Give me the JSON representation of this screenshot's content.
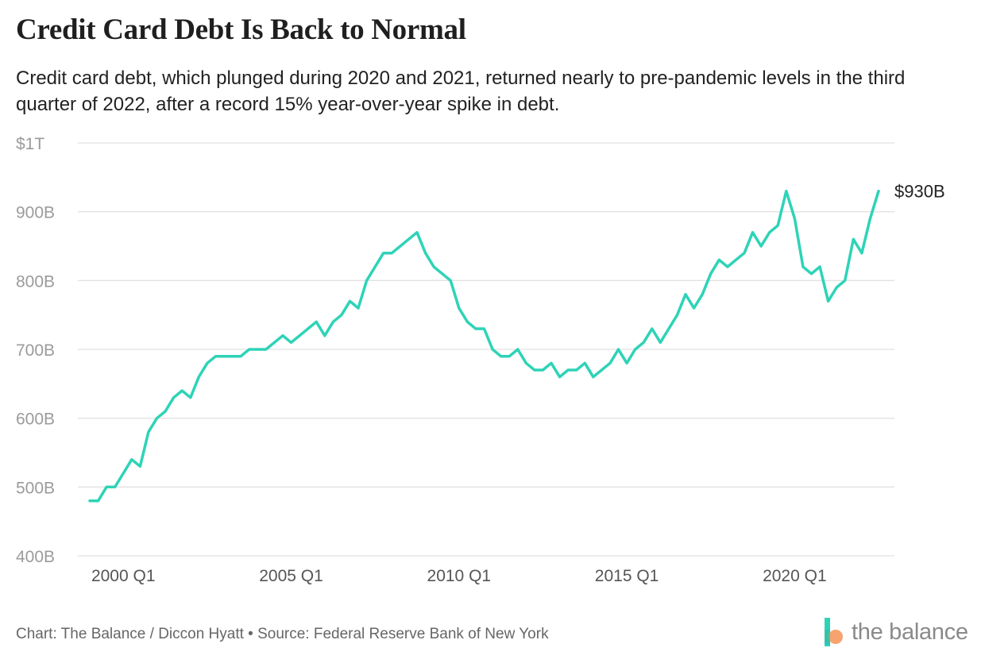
{
  "header": {
    "title": "Credit Card Debt Is Back to Normal",
    "subtitle": "Credit card debt, which plunged during 2020 and 2021, returned nearly to pre-pandemic levels in the third quarter of 2022, after a record 15% year-over-year spike in debt."
  },
  "footer": {
    "credit": "Chart: The Balance / Diccon Hyatt • Source: Federal Reserve Bank of New York",
    "brand": "the balance"
  },
  "colors": {
    "line": "#2ed3b7",
    "grid": "#e2e2e2",
    "tick": "#9b9b9b",
    "brand_teal": "#2ed3b7",
    "brand_orange": "#f6a36f"
  },
  "chart_data": {
    "type": "line",
    "title": "",
    "xlabel": "",
    "ylabel": "",
    "y_unit": "billions of dollars",
    "ylim": [
      400,
      1000
    ],
    "y_ticks": [
      {
        "value": 400,
        "label": "400B"
      },
      {
        "value": 500,
        "label": "500B"
      },
      {
        "value": 600,
        "label": "600B"
      },
      {
        "value": 700,
        "label": "700B"
      },
      {
        "value": 800,
        "label": "800B"
      },
      {
        "value": 900,
        "label": "900B"
      },
      {
        "value": 1000,
        "label": "$1T"
      }
    ],
    "x_ticks": [
      "2000 Q1",
      "2005 Q1",
      "2010 Q1",
      "2015 Q1",
      "2020 Q1"
    ],
    "grid": true,
    "end_label": "$930B",
    "series": [
      {
        "x": [
          "1999 Q1",
          "1999 Q2",
          "1999 Q3",
          "1999 Q4",
          "2000 Q1",
          "2000 Q2",
          "2000 Q3",
          "2000 Q4",
          "2001 Q1",
          "2001 Q2",
          "2001 Q3",
          "2001 Q4",
          "2002 Q1",
          "2002 Q2",
          "2002 Q3",
          "2002 Q4",
          "2003 Q1",
          "2003 Q2",
          "2003 Q3",
          "2003 Q4",
          "2004 Q1",
          "2004 Q2",
          "2004 Q3",
          "2004 Q4",
          "2005 Q1",
          "2005 Q2",
          "2005 Q3",
          "2005 Q4",
          "2006 Q1",
          "2006 Q2",
          "2006 Q3",
          "2006 Q4",
          "2007 Q1",
          "2007 Q2",
          "2007 Q3",
          "2007 Q4",
          "2008 Q1",
          "2008 Q2",
          "2008 Q3",
          "2008 Q4",
          "2009 Q1",
          "2009 Q2",
          "2009 Q3",
          "2009 Q4",
          "2010 Q1",
          "2010 Q2",
          "2010 Q3",
          "2010 Q4",
          "2011 Q1",
          "2011 Q2",
          "2011 Q3",
          "2011 Q4",
          "2012 Q1",
          "2012 Q2",
          "2012 Q3",
          "2012 Q4",
          "2013 Q1",
          "2013 Q2",
          "2013 Q3",
          "2013 Q4",
          "2014 Q1",
          "2014 Q2",
          "2014 Q3",
          "2014 Q4",
          "2015 Q1",
          "2015 Q2",
          "2015 Q3",
          "2015 Q4",
          "2016 Q1",
          "2016 Q2",
          "2016 Q3",
          "2016 Q4",
          "2017 Q1",
          "2017 Q2",
          "2017 Q3",
          "2017 Q4",
          "2018 Q1",
          "2018 Q2",
          "2018 Q3",
          "2018 Q4",
          "2019 Q1",
          "2019 Q2",
          "2019 Q3",
          "2019 Q4",
          "2020 Q1",
          "2020 Q2",
          "2020 Q3",
          "2020 Q4",
          "2021 Q1",
          "2021 Q2",
          "2021 Q3",
          "2021 Q4",
          "2022 Q1",
          "2022 Q2",
          "2022 Q3"
        ],
        "values": [
          480,
          480,
          500,
          500,
          520,
          540,
          530,
          580,
          600,
          610,
          630,
          640,
          630,
          660,
          680,
          690,
          690,
          690,
          690,
          700,
          700,
          700,
          710,
          720,
          710,
          720,
          730,
          740,
          720,
          740,
          750,
          770,
          760,
          800,
          820,
          840,
          840,
          850,
          860,
          870,
          840,
          820,
          810,
          800,
          760,
          740,
          730,
          730,
          700,
          690,
          690,
          700,
          680,
          670,
          670,
          680,
          660,
          670,
          670,
          680,
          660,
          670,
          680,
          700,
          680,
          700,
          710,
          730,
          710,
          730,
          750,
          780,
          760,
          780,
          810,
          830,
          820,
          830,
          840,
          870,
          850,
          870,
          880,
          930,
          890,
          820,
          810,
          820,
          770,
          790,
          800,
          860,
          840,
          890,
          930
        ]
      }
    ]
  }
}
